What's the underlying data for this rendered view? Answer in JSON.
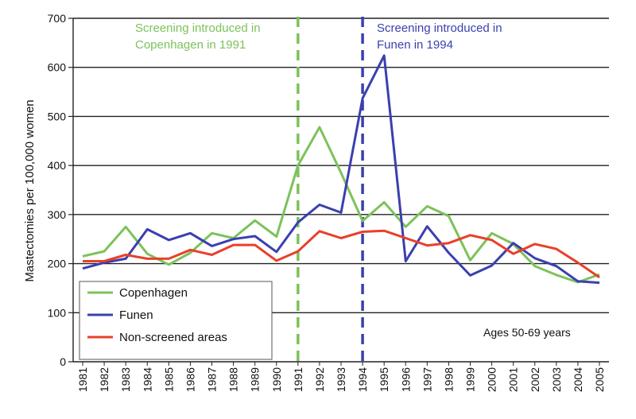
{
  "chart_data": {
    "type": "line",
    "title": "",
    "xlabel": "",
    "ylabel": "Mastectomies per 100,000 women",
    "ylim": [
      0,
      700
    ],
    "yticks": [
      0,
      100,
      200,
      300,
      400,
      500,
      600,
      700
    ],
    "grid": "horizontal",
    "categories": [
      "1981",
      "1982",
      "1983",
      "1984",
      "1985",
      "1986",
      "1987",
      "1988",
      "1989",
      "1990",
      "1991",
      "1992",
      "1993",
      "1994",
      "1995",
      "1996",
      "1997",
      "1998",
      "1999",
      "2000",
      "2001",
      "2002",
      "2003",
      "2004",
      "2005"
    ],
    "series": [
      {
        "name": "Copenhagen",
        "color": "#7cc25a",
        "values": [
          215,
          225,
          275,
          220,
          198,
          222,
          262,
          252,
          288,
          255,
          400,
          478,
          385,
          287,
          325,
          275,
          317,
          297,
          207,
          262,
          240,
          195,
          177,
          162,
          178
        ]
      },
      {
        "name": "Funen",
        "color": "#3b3faf",
        "values": [
          190,
          202,
          210,
          270,
          248,
          262,
          236,
          250,
          256,
          224,
          284,
          320,
          304,
          537,
          624,
          205,
          276,
          222,
          176,
          196,
          242,
          211,
          195,
          164,
          161
        ]
      },
      {
        "name": "Non-screened areas",
        "color": "#e8402a",
        "values": [
          205,
          205,
          218,
          210,
          210,
          228,
          218,
          238,
          238,
          206,
          225,
          266,
          252,
          265,
          267,
          252,
          237,
          242,
          258,
          248,
          220,
          240,
          230,
          202,
          172
        ]
      }
    ],
    "reference_lines": [
      {
        "at": "1991",
        "color": "#7cc25a",
        "label_lines": [
          "Screening introduced in",
          "Copenhagen in 1991"
        ]
      },
      {
        "at": "1994",
        "color": "#3b3faf",
        "label_lines": [
          "Screening introduced in",
          "Funen in 1994"
        ]
      }
    ],
    "legend_position": "bottom-left",
    "note": "Ages 50-69 years"
  }
}
